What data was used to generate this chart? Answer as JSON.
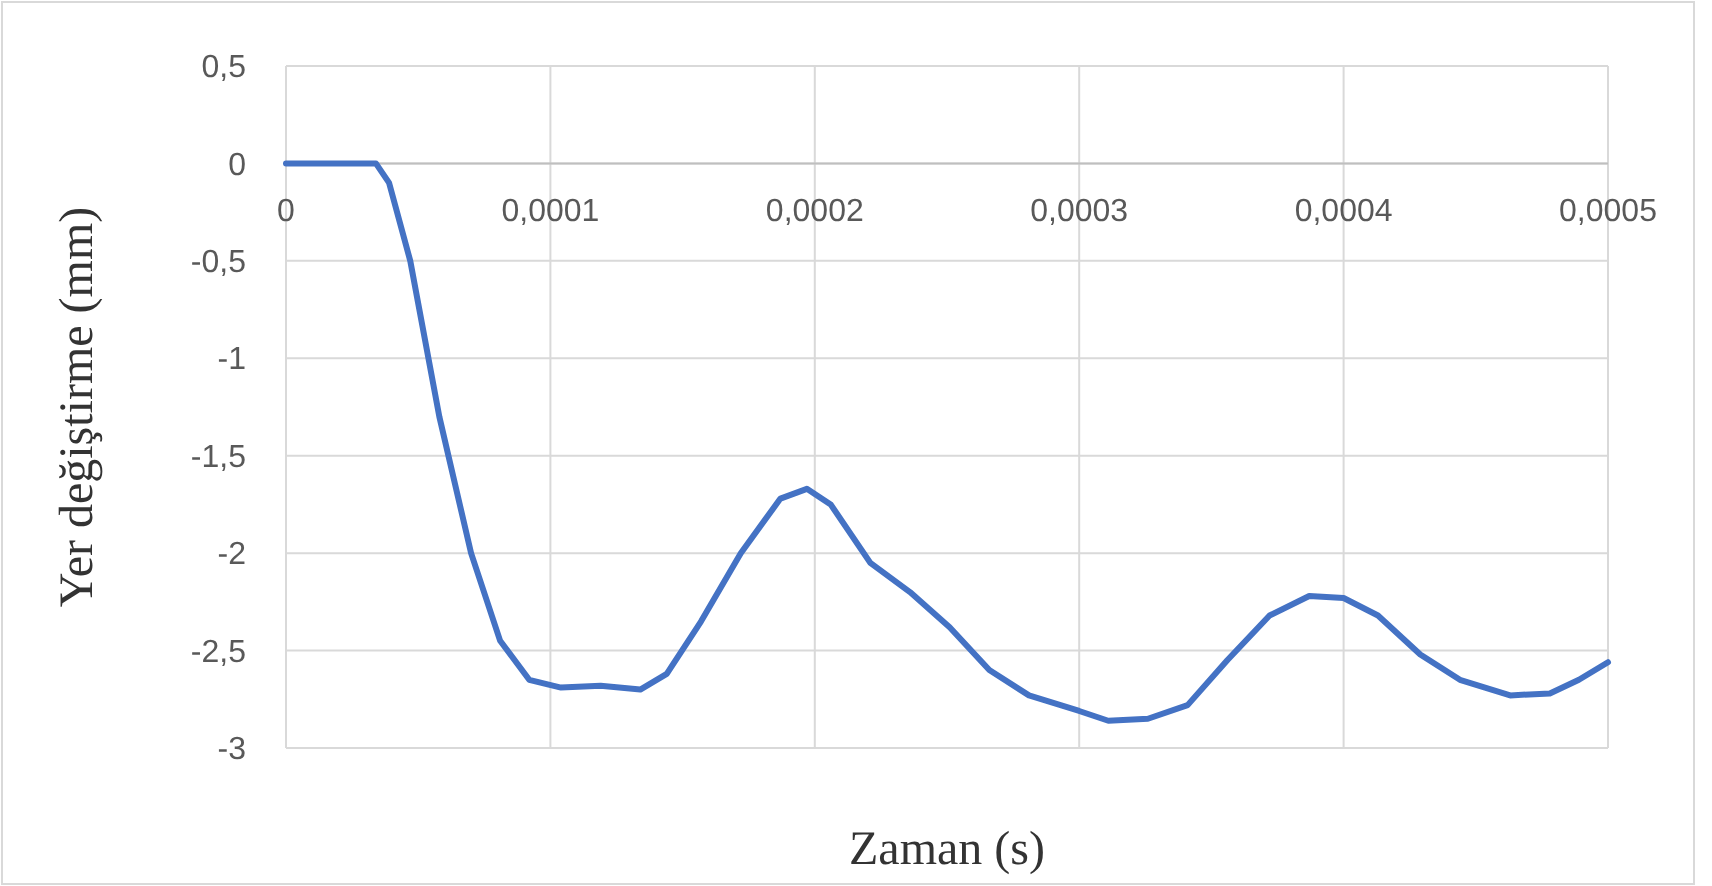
{
  "chart_data": {
    "type": "line",
    "xlabel": "Zaman (s)",
    "ylabel": "Yer değiştirme (mm)",
    "xlim": [
      0,
      0.0005
    ],
    "ylim": [
      -3,
      0.5
    ],
    "grid": true,
    "marker": "none",
    "line_style": "solid",
    "xticks": [
      {
        "value": 0,
        "label": "0"
      },
      {
        "value": 0.0001,
        "label": "0,0001"
      },
      {
        "value": 0.0002,
        "label": "0,0002"
      },
      {
        "value": 0.0003,
        "label": "0,0003"
      },
      {
        "value": 0.0004,
        "label": "0,0004"
      },
      {
        "value": 0.0005,
        "label": "0,0005"
      }
    ],
    "yticks": [
      {
        "value": 0.5,
        "label": "0,5"
      },
      {
        "value": 0,
        "label": "0"
      },
      {
        "value": -0.5,
        "label": "-0,5"
      },
      {
        "value": -1,
        "label": "-1"
      },
      {
        "value": -1.5,
        "label": "-1,5"
      },
      {
        "value": -2,
        "label": "-2"
      },
      {
        "value": -2.5,
        "label": "-2,5"
      },
      {
        "value": -3,
        "label": "-3"
      }
    ],
    "series": [
      {
        "color": "#4472c4",
        "x": [
          0,
          3.4e-05,
          3.9e-05,
          4.7e-05,
          5.8e-05,
          7e-05,
          8.1e-05,
          9.2e-05,
          0.000104,
          0.000119,
          0.000134,
          0.000144,
          0.000157,
          0.000172,
          0.000187,
          0.000197,
          0.000206,
          0.000221,
          0.000236,
          0.000251,
          0.000266,
          0.000281,
          0.0003,
          0.000311,
          0.000326,
          0.000341,
          0.000356,
          0.000372,
          0.000387,
          0.0004,
          0.000413,
          0.000429,
          0.000444,
          0.000463,
          0.000478,
          0.000489,
          0.0005
        ],
        "values": [
          0,
          0,
          -0.1,
          -0.5,
          -1.3,
          -2.0,
          -2.45,
          -2.65,
          -2.69,
          -2.68,
          -2.7,
          -2.62,
          -2.35,
          -2.0,
          -1.72,
          -1.67,
          -1.75,
          -2.05,
          -2.2,
          -2.38,
          -2.6,
          -2.73,
          -2.81,
          -2.86,
          -2.85,
          -2.78,
          -2.55,
          -2.32,
          -2.22,
          -2.23,
          -2.32,
          -2.52,
          -2.65,
          -2.73,
          -2.72,
          -2.65,
          -2.56
        ]
      }
    ]
  }
}
